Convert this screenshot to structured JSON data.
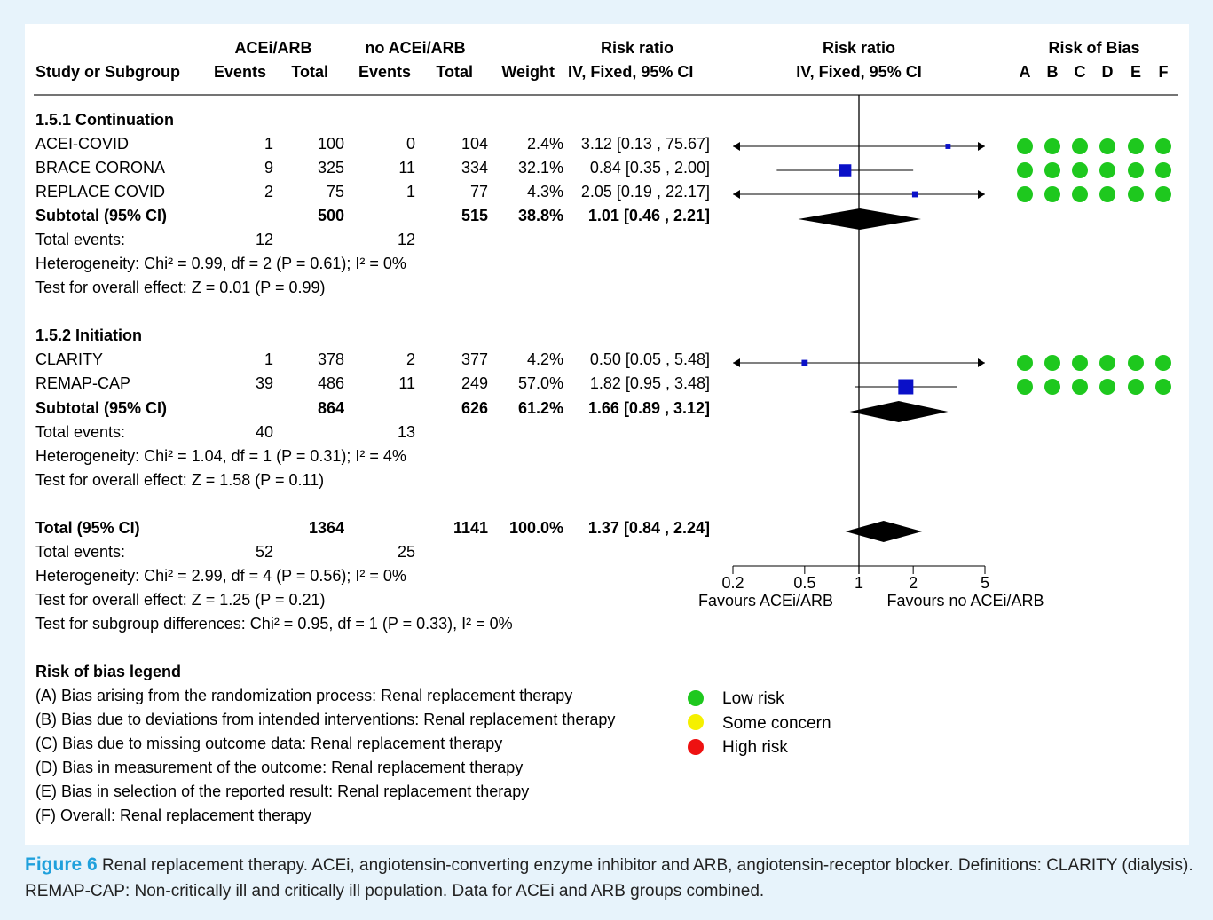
{
  "headers": {
    "group1": "ACEi/ARB",
    "group2": "no ACEi/ARB",
    "rr_text_top": "Risk ratio",
    "rr_text_bottom": "IV, Fixed, 95% CI",
    "rr_plot_top": "Risk ratio",
    "rr_plot_bottom": "IV, Fixed, 95% CI",
    "rob_title": "Risk of Bias",
    "study": "Study or Subgroup",
    "events1": "Events",
    "total1": "Total",
    "events2": "Events",
    "total2": "Total",
    "weight": "Weight",
    "rob_letters": [
      "A",
      "B",
      "C",
      "D",
      "E",
      "F"
    ]
  },
  "subgroups": [
    {
      "title": "1.5.1 Continuation",
      "studies": [
        {
          "name": "ACEI-COVID",
          "e1": "1",
          "t1": "100",
          "e2": "0",
          "t2": "104",
          "weight": "2.4%",
          "ci_text": "3.12 [0.13 , 75.67]",
          "rr": 3.12,
          "lo": 0.13,
          "hi": 75.67,
          "w": 2.4,
          "rob": [
            "low",
            "low",
            "low",
            "low",
            "low",
            "low"
          ]
        },
        {
          "name": "BRACE CORONA",
          "e1": "9",
          "t1": "325",
          "e2": "11",
          "t2": "334",
          "weight": "32.1%",
          "ci_text": "0.84 [0.35 , 2.00]",
          "rr": 0.84,
          "lo": 0.35,
          "hi": 2.0,
          "w": 32.1,
          "rob": [
            "low",
            "low",
            "low",
            "low",
            "low",
            "low"
          ]
        },
        {
          "name": "REPLACE COVID",
          "e1": "2",
          "t1": "75",
          "e2": "1",
          "t2": "77",
          "weight": "4.3%",
          "ci_text": "2.05 [0.19 , 22.17]",
          "rr": 2.05,
          "lo": 0.19,
          "hi": 22.17,
          "w": 4.3,
          "rob": [
            "low",
            "low",
            "low",
            "low",
            "low",
            "low"
          ]
        }
      ],
      "subtotal": {
        "label": "Subtotal (95% CI)",
        "t1": "500",
        "t2": "515",
        "weight": "38.8%",
        "ci_text": "1.01 [0.46 , 2.21]",
        "rr": 1.01,
        "lo": 0.46,
        "hi": 2.21
      },
      "total_events": {
        "label": "Total events:",
        "e1": "12",
        "e2": "12"
      },
      "heterogeneity": "Heterogeneity: Chi² = 0.99, df = 2 (P = 0.61); I² = 0%",
      "overall": "Test for overall effect: Z = 0.01 (P = 0.99)"
    },
    {
      "title": "1.5.2 Initiation",
      "studies": [
        {
          "name": "CLARITY",
          "e1": "1",
          "t1": "378",
          "e2": "2",
          "t2": "377",
          "weight": "4.2%",
          "ci_text": "0.50 [0.05 , 5.48]",
          "rr": 0.5,
          "lo": 0.05,
          "hi": 5.48,
          "w": 4.2,
          "rob": [
            "low",
            "low",
            "low",
            "low",
            "low",
            "low"
          ]
        },
        {
          "name": "REMAP-CAP",
          "e1": "39",
          "t1": "486",
          "e2": "11",
          "t2": "249",
          "weight": "57.0%",
          "ci_text": "1.82 [0.95 , 3.48]",
          "rr": 1.82,
          "lo": 0.95,
          "hi": 3.48,
          "w": 57.0,
          "rob": [
            "low",
            "low",
            "low",
            "low",
            "low",
            "low"
          ]
        }
      ],
      "subtotal": {
        "label": "Subtotal (95% CI)",
        "t1": "864",
        "t2": "626",
        "weight": "61.2%",
        "ci_text": "1.66 [0.89 , 3.12]",
        "rr": 1.66,
        "lo": 0.89,
        "hi": 3.12
      },
      "total_events": {
        "label": "Total events:",
        "e1": "40",
        "e2": "13"
      },
      "heterogeneity": "Heterogeneity: Chi² = 1.04, df = 1 (P = 0.31); I² = 4%",
      "overall": "Test for overall effect: Z = 1.58 (P = 0.11)"
    }
  ],
  "total": {
    "label": "Total (95% CI)",
    "t1": "1364",
    "t2": "1141",
    "weight": "100.0%",
    "ci_text": "1.37 [0.84 , 2.24]",
    "rr": 1.37,
    "lo": 0.84,
    "hi": 2.24,
    "events": {
      "label": "Total events:",
      "e1": "52",
      "e2": "25"
    },
    "heterogeneity": "Heterogeneity: Chi² = 2.99, df = 4 (P = 0.56); I² = 0%",
    "overall": "Test for overall effect: Z = 1.25 (P = 0.21)",
    "subgroup_diff": "Test for subgroup differences: Chi² = 0.95, df = 1 (P = 0.33), I² = 0%"
  },
  "chart_data": {
    "type": "forest",
    "x_scale": "log",
    "xlim": [
      0.2,
      5
    ],
    "ticks": [
      0.2,
      0.5,
      1,
      2,
      5
    ],
    "tick_labels": [
      "0.2",
      "0.5",
      "1",
      "2",
      "5"
    ],
    "null_value": 1,
    "favours_left": "Favours ACEi/ARB",
    "favours_right": "Favours no ACEi/ARB"
  },
  "legend": {
    "title": "Risk of bias legend",
    "items": [
      "(A) Bias arising from the randomization process: Renal replacement therapy",
      "(B) Bias due to deviations from intended interventions: Renal replacement therapy",
      "(C) Bias due to missing outcome data: Renal replacement therapy",
      "(D) Bias in measurement of the outcome: Renal replacement therapy",
      "(E) Bias in selection of the reported result: Renal replacement therapy",
      "(F) Overall: Renal replacement therapy"
    ],
    "risk_levels": [
      {
        "label": "Low risk",
        "color": "#1ec81e"
      },
      {
        "label": "Some concern",
        "color": "#f5f000"
      },
      {
        "label": "High risk",
        "color": "#ee1111"
      }
    ]
  },
  "colors": {
    "marker": "#0a10c8",
    "diamond": "#000000",
    "low": "#1ec81e"
  },
  "caption": {
    "figure_label": "Figure 6",
    "text": "Renal replacement therapy. ACEi, angiotensin-converting enzyme inhibitor and ARB, angiotensin-receptor blocker. Definitions: CLARITY (dialysis). REMAP-CAP: Non-critically ill and critically ill population. Data for ACEi and ARB groups combined."
  }
}
